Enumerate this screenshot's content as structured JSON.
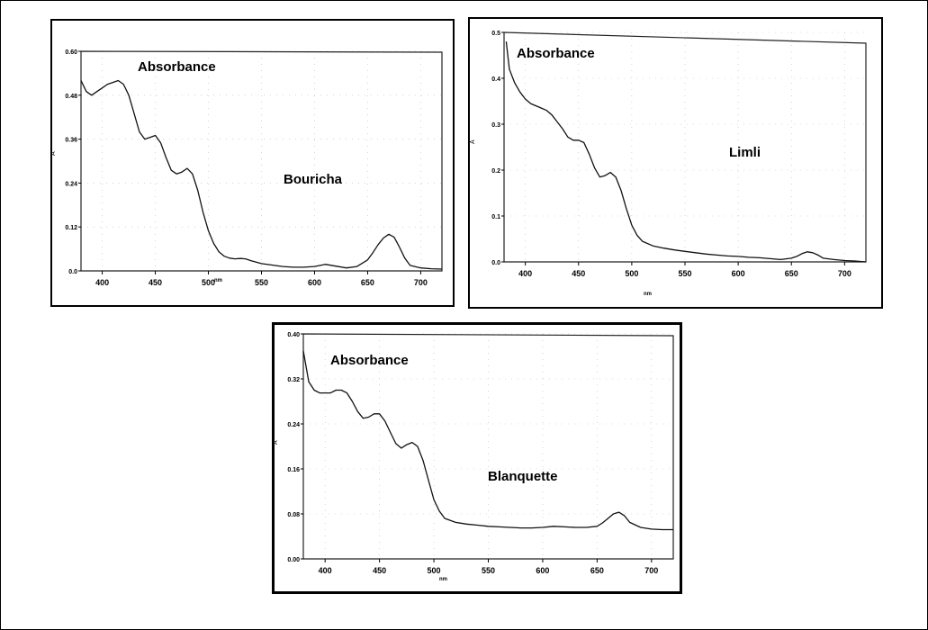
{
  "chart_data": [
    {
      "type": "line",
      "annotation_top": "Absorbance",
      "annotation_name": "Bouricha",
      "unit_label": "nm",
      "ylabel": "A",
      "xlim": [
        380,
        720
      ],
      "ylim": [
        0,
        0.6
      ],
      "x_ticks": [
        400,
        450,
        500,
        550,
        600,
        650,
        700
      ],
      "y_ticks": [
        0.0,
        0.12,
        0.24,
        0.36,
        0.48,
        0.6
      ],
      "y_tick_labels": [
        "0.0",
        "0.12",
        "0.24",
        "0.36",
        "0.48",
        "0.60"
      ],
      "grid": "dotted",
      "series": [
        {
          "x": [
            380,
            385,
            390,
            395,
            400,
            405,
            410,
            415,
            420,
            425,
            430,
            435,
            440,
            445,
            450,
            455,
            460,
            465,
            470,
            475,
            480,
            485,
            490,
            495,
            500,
            505,
            510,
            515,
            520,
            525,
            530,
            535,
            540,
            550,
            560,
            570,
            580,
            590,
            600,
            610,
            620,
            630,
            640,
            650,
            655,
            660,
            665,
            670,
            675,
            680,
            685,
            690,
            700,
            710,
            720
          ],
          "y": [
            0.52,
            0.49,
            0.48,
            0.49,
            0.5,
            0.51,
            0.515,
            0.52,
            0.51,
            0.48,
            0.43,
            0.38,
            0.36,
            0.365,
            0.37,
            0.35,
            0.31,
            0.275,
            0.265,
            0.27,
            0.28,
            0.265,
            0.22,
            0.16,
            0.11,
            0.075,
            0.052,
            0.04,
            0.035,
            0.033,
            0.034,
            0.033,
            0.028,
            0.02,
            0.016,
            0.012,
            0.01,
            0.01,
            0.012,
            0.018,
            0.013,
            0.008,
            0.012,
            0.03,
            0.05,
            0.072,
            0.09,
            0.1,
            0.092,
            0.065,
            0.035,
            0.015,
            0.008,
            0.006,
            0.005
          ]
        }
      ]
    },
    {
      "type": "line",
      "annotation_top": "Absorbance",
      "annotation_name": "Limli",
      "unit_label": "nm",
      "ylabel": "A",
      "xlim": [
        380,
        720
      ],
      "ylim": [
        0,
        0.5
      ],
      "x_ticks": [
        400,
        450,
        500,
        550,
        600,
        650,
        700
      ],
      "y_ticks": [
        0.0,
        0.1,
        0.2,
        0.3,
        0.4,
        0.5
      ],
      "y_tick_labels": [
        "0.0",
        "0.1",
        "0.2",
        "0.3",
        "0.4",
        "0.5"
      ],
      "grid": "dotted",
      "series": [
        {
          "x": [
            382,
            385,
            390,
            395,
            400,
            405,
            410,
            415,
            420,
            425,
            430,
            435,
            440,
            445,
            450,
            455,
            460,
            465,
            470,
            475,
            480,
            485,
            490,
            495,
            500,
            505,
            510,
            520,
            530,
            540,
            550,
            560,
            570,
            580,
            590,
            600,
            610,
            620,
            630,
            640,
            650,
            655,
            660,
            665,
            670,
            675,
            680,
            690,
            700,
            710,
            720
          ],
          "y": [
            0.48,
            0.42,
            0.39,
            0.37,
            0.355,
            0.345,
            0.34,
            0.335,
            0.33,
            0.32,
            0.305,
            0.29,
            0.272,
            0.265,
            0.265,
            0.26,
            0.235,
            0.205,
            0.185,
            0.188,
            0.195,
            0.185,
            0.155,
            0.115,
            0.08,
            0.058,
            0.045,
            0.035,
            0.03,
            0.026,
            0.023,
            0.02,
            0.017,
            0.015,
            0.013,
            0.012,
            0.01,
            0.009,
            0.007,
            0.005,
            0.008,
            0.012,
            0.018,
            0.022,
            0.02,
            0.015,
            0.008,
            0.005,
            0.003,
            0.002,
            0.0
          ]
        }
      ]
    },
    {
      "type": "line",
      "annotation_top": "Absorbance",
      "annotation_name": "Blanquette",
      "unit_label": "nm",
      "ylabel": "A",
      "xlim": [
        380,
        720
      ],
      "ylim": [
        0,
        0.4
      ],
      "x_ticks": [
        400,
        450,
        500,
        550,
        600,
        650,
        700
      ],
      "y_ticks": [
        0.0,
        0.08,
        0.16,
        0.24,
        0.32,
        0.4
      ],
      "y_tick_labels": [
        "0.00",
        "0.08",
        "0.16",
        "0.24",
        "0.32",
        "0.40"
      ],
      "grid": "dotted",
      "series": [
        {
          "x": [
            380,
            385,
            390,
            395,
            400,
            405,
            410,
            415,
            420,
            425,
            430,
            435,
            440,
            445,
            450,
            455,
            460,
            465,
            470,
            475,
            480,
            485,
            490,
            495,
            500,
            505,
            510,
            520,
            530,
            540,
            550,
            560,
            570,
            580,
            590,
            600,
            610,
            620,
            630,
            640,
            650,
            655,
            660,
            665,
            670,
            675,
            680,
            690,
            700,
            710,
            720
          ],
          "y": [
            0.37,
            0.315,
            0.3,
            0.295,
            0.295,
            0.295,
            0.3,
            0.3,
            0.295,
            0.28,
            0.262,
            0.25,
            0.252,
            0.258,
            0.258,
            0.245,
            0.225,
            0.205,
            0.197,
            0.203,
            0.207,
            0.2,
            0.175,
            0.14,
            0.105,
            0.085,
            0.072,
            0.065,
            0.062,
            0.06,
            0.058,
            0.057,
            0.056,
            0.055,
            0.055,
            0.056,
            0.058,
            0.057,
            0.056,
            0.056,
            0.058,
            0.064,
            0.072,
            0.08,
            0.083,
            0.077,
            0.065,
            0.056,
            0.053,
            0.052,
            0.052
          ]
        }
      ]
    }
  ]
}
